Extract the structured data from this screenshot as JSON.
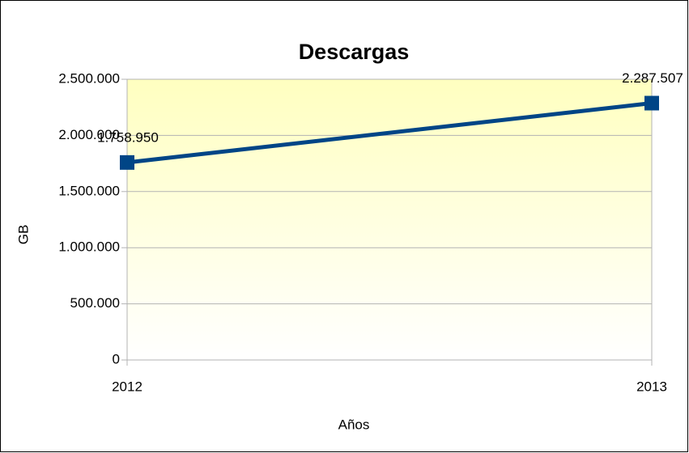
{
  "chart_data": {
    "type": "line",
    "title": "Descargas",
    "x_label": "Años",
    "y_label": "GB",
    "categories": [
      "2012",
      "2013"
    ],
    "values": [
      1758950,
      2287507
    ],
    "value_labels": [
      "1.758.950",
      "2.287.507"
    ],
    "color": "#004586",
    "ylim": [
      0,
      2500000
    ],
    "yticks": [
      0,
      {
        "value": 500000,
        "label": "500.000"
      },
      {
        "value": 1000000,
        "label": "1.000.000"
      },
      {
        "value": 1500000,
        "label": "1.500.000"
      },
      {
        "value": 2000000,
        "label": "2.000.000"
      },
      {
        "value": 2500000,
        "label": "2.500.000"
      }
    ],
    "grid": true
  }
}
